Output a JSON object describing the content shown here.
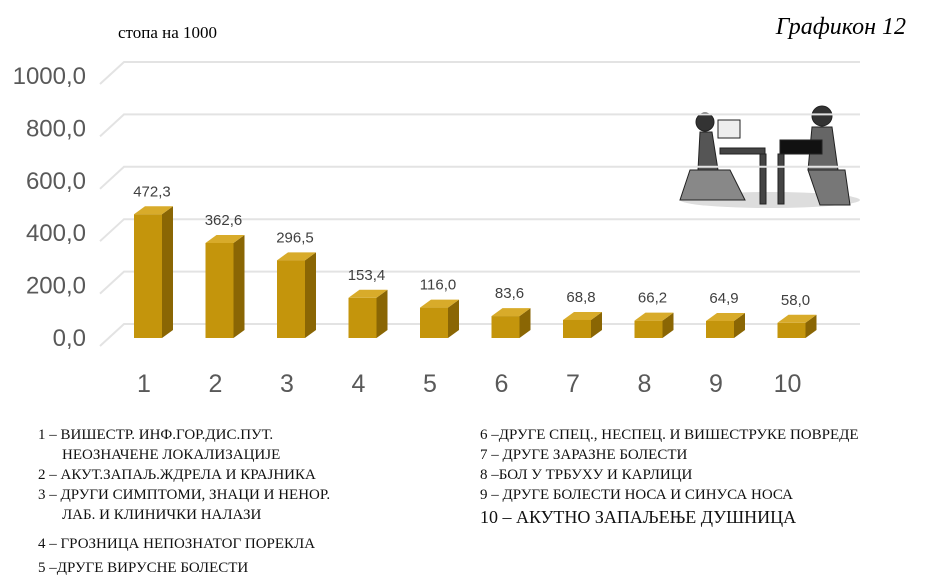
{
  "chart_data": {
    "type": "bar3d",
    "title": "Графикон 12",
    "subtitle": "стопа на 1000",
    "categories": [
      "1",
      "2",
      "3",
      "4",
      "5",
      "6",
      "7",
      "8",
      "9",
      "10"
    ],
    "values": [
      472.3,
      362.6,
      296.5,
      153.4,
      116.0,
      83.6,
      68.8,
      66.2,
      64.9,
      58.0
    ],
    "value_labels": [
      "472,3",
      "362,6",
      "296,5",
      "153,4",
      "116,0",
      "83,6",
      "68,8",
      "66,2",
      "64,9",
      "58,0"
    ],
    "color": "#c4950c",
    "ylim": [
      0,
      1000
    ],
    "yticks": [
      {
        "value": 0,
        "label": "0,0"
      },
      {
        "value": 200,
        "label": "200,0"
      },
      {
        "value": 400,
        "label": "400,0"
      },
      {
        "value": 600,
        "label": "600,0"
      },
      {
        "value": 800,
        "label": "800,0"
      },
      {
        "value": 1000,
        "label": "1000,0"
      }
    ],
    "grid": true,
    "notes": [
      "1 – ВИШЕСТР. ИНФ.ГОР.ДИС.ПУТ.",
      "НЕОЗНАЧЕНЕ ЛОКАЛИЗАЦИЈЕ",
      "2 – АКУТ.ЗАПАЉ.ЖДРЕЛА И КРАЈНИКА",
      "3 – ДРУГИ СИМПТОМИ, ЗНАЦИ И НЕНОР.",
      "ЛАБ. И КЛИНИЧКИ НАЛАЗИ",
      "4 –  ГРОЗНИЦА НЕПОЗНАТОГ ПОРЕКЛА",
      "5 –ДРУГЕ ВИРУСНЕ БОЛЕСТИ",
      "6 –ДРУГЕ СПЕЦ., НЕСПЕЦ. И ВИШЕСТРУКЕ ПОВРЕДЕ",
      "7 – ДРУГЕ ЗАРАЗНЕ БОЛЕСТИ",
      "8 –БОЛ У ТРБУХУ И КАРЛИЦИ",
      "9 – ДРУГЕ БОЛЕСТИ НОСА И СИНУСА НОСА",
      "10 – АКУТНО ЗАПАЉЕЊЕ ДУШНИЦА"
    ]
  }
}
